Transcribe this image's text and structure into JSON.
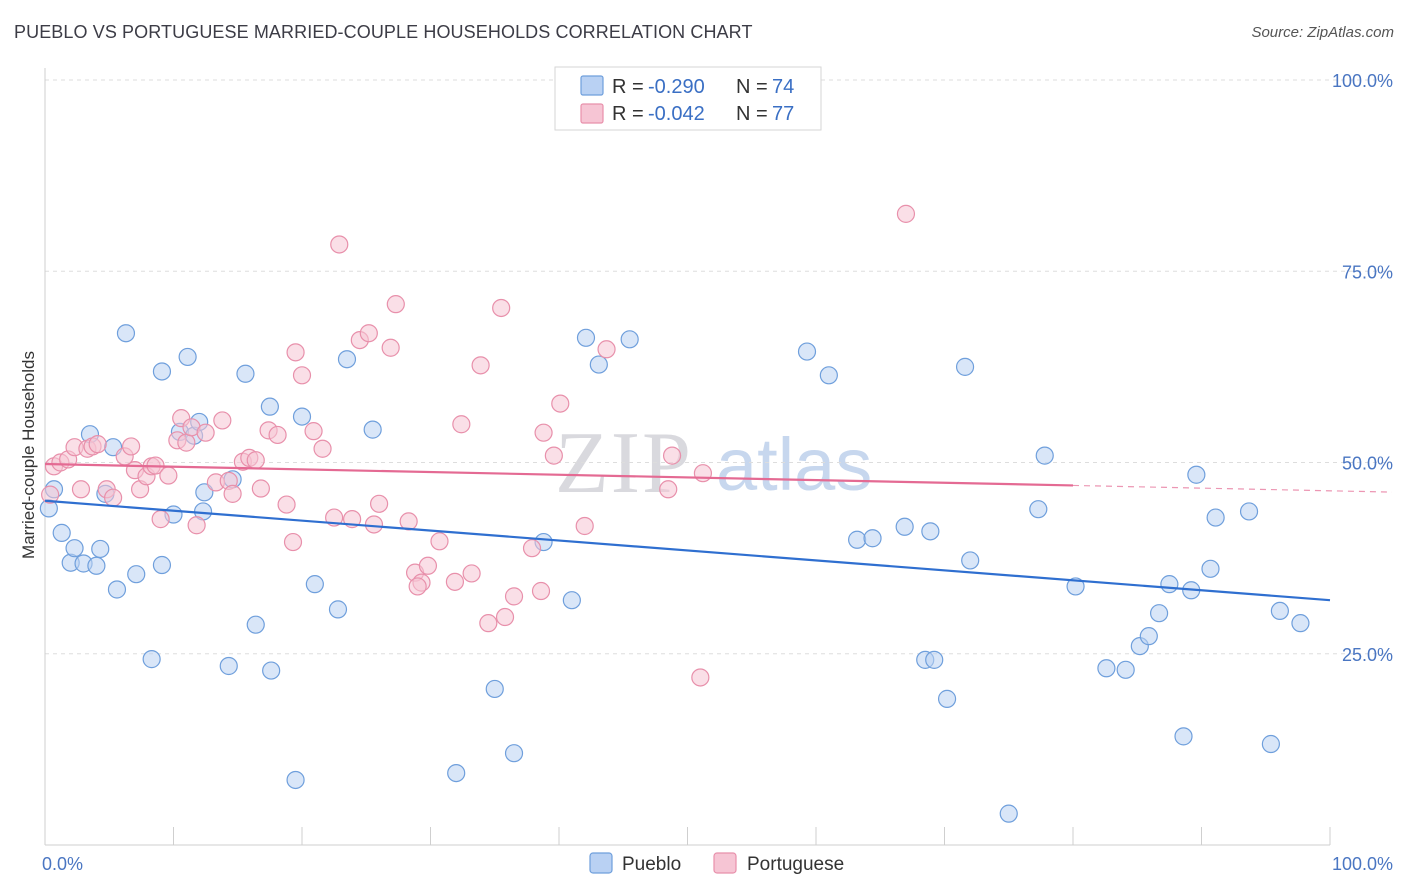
{
  "title": "PUEBLO VS PORTUGUESE MARRIED-COUPLE HOUSEHOLDS CORRELATION CHART",
  "source": "Source: ZipAtlas.com",
  "watermark": {
    "zip": "ZIP",
    "atlas": "atlas"
  },
  "colors": {
    "pueblo_fill": "#b9d1f3",
    "pueblo_stroke": "#6f9fdc",
    "pueblo_line": "#2f6fd0",
    "portuguese_fill": "#f6c5d4",
    "portuguese_stroke": "#e890ab",
    "portuguese_line": "#e46a93",
    "grid": "#dddddd",
    "tick_text": "#4a76c2"
  },
  "chart_data": {
    "type": "scatter",
    "title": "PUEBLO VS PORTUGUESE MARRIED-COUPLE HOUSEHOLDS CORRELATION CHART",
    "xlabel": "",
    "ylabel": "Married-couple Households",
    "xlim": [
      0,
      100
    ],
    "ylim": [
      0,
      100
    ],
    "x_tick_labels": [
      "0.0%",
      "100.0%"
    ],
    "y_ticks": [
      25,
      50,
      75,
      100
    ],
    "y_tick_labels": [
      "25.0%",
      "50.0%",
      "75.0%",
      "100.0%"
    ],
    "grid": true,
    "legend": {
      "placement": "top-center",
      "entries": [
        {
          "r_label": "R =",
          "r_value": "-0.290",
          "n_label": "N =",
          "n_value": "74"
        },
        {
          "r_label": "R =",
          "r_value": "-0.042",
          "n_label": "N =",
          "n_value": "77"
        }
      ]
    },
    "series": [
      {
        "name": "Pueblo",
        "trend": {
          "x": [
            0,
            100
          ],
          "y": [
            45.0,
            32.0
          ],
          "dashed_from": null
        },
        "points": [
          [
            0.3,
            44.0
          ],
          [
            0.7,
            46.5
          ],
          [
            1.3,
            40.8
          ],
          [
            2.0,
            36.9
          ],
          [
            2.3,
            38.8
          ],
          [
            3.0,
            36.8
          ],
          [
            3.5,
            53.7
          ],
          [
            4.0,
            36.5
          ],
          [
            4.3,
            38.7
          ],
          [
            4.7,
            45.9
          ],
          [
            5.3,
            52.0
          ],
          [
            5.6,
            33.4
          ],
          [
            6.3,
            66.9
          ],
          [
            7.1,
            35.4
          ],
          [
            8.3,
            24.3
          ],
          [
            9.1,
            36.6
          ],
          [
            9.1,
            61.9
          ],
          [
            10.0,
            43.2
          ],
          [
            10.5,
            54.0
          ],
          [
            11.1,
            63.8
          ],
          [
            11.6,
            53.5
          ],
          [
            12.0,
            55.3
          ],
          [
            12.3,
            43.6
          ],
          [
            12.4,
            46.1
          ],
          [
            14.3,
            23.4
          ],
          [
            14.6,
            47.8
          ],
          [
            15.6,
            61.6
          ],
          [
            16.4,
            28.8
          ],
          [
            17.5,
            57.3
          ],
          [
            17.6,
            22.8
          ],
          [
            19.5,
            8.5
          ],
          [
            20.0,
            56.0
          ],
          [
            21.0,
            34.1
          ],
          [
            22.8,
            30.8
          ],
          [
            23.5,
            63.5
          ],
          [
            25.5,
            54.3
          ],
          [
            32.0,
            9.4
          ],
          [
            35.0,
            20.4
          ],
          [
            36.5,
            12.0
          ],
          [
            38.8,
            39.6
          ],
          [
            41.0,
            32.0
          ],
          [
            42.1,
            66.3
          ],
          [
            43.1,
            62.8
          ],
          [
            45.5,
            66.1
          ],
          [
            59.3,
            64.5
          ],
          [
            61.0,
            61.4
          ],
          [
            63.2,
            39.9
          ],
          [
            64.4,
            40.1
          ],
          [
            66.9,
            41.6
          ],
          [
            68.5,
            24.2
          ],
          [
            68.9,
            41.0
          ],
          [
            69.2,
            24.2
          ],
          [
            70.2,
            19.1
          ],
          [
            71.6,
            62.5
          ],
          [
            72.0,
            37.2
          ],
          [
            75.0,
            4.1
          ],
          [
            77.3,
            43.9
          ],
          [
            77.8,
            50.9
          ],
          [
            80.2,
            33.8
          ],
          [
            82.6,
            23.1
          ],
          [
            84.1,
            22.9
          ],
          [
            85.2,
            26.0
          ],
          [
            85.9,
            27.3
          ],
          [
            86.7,
            30.3
          ],
          [
            87.5,
            34.1
          ],
          [
            88.6,
            14.2
          ],
          [
            89.2,
            33.3
          ],
          [
            89.6,
            48.4
          ],
          [
            90.7,
            36.1
          ],
          [
            91.1,
            42.8
          ],
          [
            93.7,
            43.6
          ],
          [
            95.4,
            13.2
          ],
          [
            96.1,
            30.6
          ],
          [
            97.7,
            29.0
          ]
        ]
      },
      {
        "name": "Portuguese",
        "trend": {
          "x": [
            0,
            100
          ],
          "y": [
            49.8,
            46.3
          ],
          "dashed_from": 80
        },
        "points": [
          [
            0.4,
            45.8
          ],
          [
            0.7,
            49.5
          ],
          [
            1.2,
            50.0
          ],
          [
            1.8,
            50.4
          ],
          [
            2.3,
            52.0
          ],
          [
            2.8,
            46.5
          ],
          [
            3.3,
            51.8
          ],
          [
            3.7,
            52.1
          ],
          [
            4.1,
            52.4
          ],
          [
            4.8,
            46.5
          ],
          [
            5.3,
            45.4
          ],
          [
            6.2,
            50.8
          ],
          [
            6.7,
            52.1
          ],
          [
            7.0,
            49.0
          ],
          [
            7.4,
            46.5
          ],
          [
            7.9,
            48.2
          ],
          [
            8.3,
            49.5
          ],
          [
            8.6,
            49.6
          ],
          [
            9.0,
            42.6
          ],
          [
            9.6,
            48.3
          ],
          [
            10.3,
            52.9
          ],
          [
            10.6,
            55.8
          ],
          [
            11.0,
            52.6
          ],
          [
            11.4,
            54.6
          ],
          [
            11.8,
            41.8
          ],
          [
            12.5,
            53.9
          ],
          [
            13.3,
            47.4
          ],
          [
            13.8,
            55.5
          ],
          [
            14.3,
            47.6
          ],
          [
            14.6,
            45.9
          ],
          [
            15.4,
            50.1
          ],
          [
            15.9,
            50.6
          ],
          [
            16.4,
            50.3
          ],
          [
            16.8,
            46.6
          ],
          [
            17.4,
            54.2
          ],
          [
            18.1,
            53.6
          ],
          [
            18.8,
            44.5
          ],
          [
            19.3,
            39.6
          ],
          [
            19.5,
            64.4
          ],
          [
            20.0,
            61.4
          ],
          [
            20.9,
            54.1
          ],
          [
            21.6,
            51.8
          ],
          [
            22.5,
            42.8
          ],
          [
            22.9,
            78.5
          ],
          [
            23.9,
            42.6
          ],
          [
            24.5,
            66.0
          ],
          [
            25.2,
            66.9
          ],
          [
            25.6,
            41.9
          ],
          [
            26.0,
            44.6
          ],
          [
            26.9,
            65.0
          ],
          [
            27.3,
            70.7
          ],
          [
            28.3,
            42.3
          ],
          [
            28.8,
            35.6
          ],
          [
            29.3,
            34.3
          ],
          [
            29.8,
            36.5
          ],
          [
            30.7,
            39.7
          ],
          [
            31.9,
            34.4
          ],
          [
            32.4,
            55.0
          ],
          [
            33.2,
            35.5
          ],
          [
            33.9,
            62.7
          ],
          [
            34.5,
            29.0
          ],
          [
            35.5,
            70.2
          ],
          [
            35.8,
            29.8
          ],
          [
            36.5,
            32.5
          ],
          [
            37.9,
            38.8
          ],
          [
            38.6,
            33.2
          ],
          [
            38.8,
            53.9
          ],
          [
            39.6,
            50.9
          ],
          [
            40.1,
            57.7
          ],
          [
            42.0,
            41.7
          ],
          [
            43.7,
            64.8
          ],
          [
            48.5,
            46.5
          ],
          [
            48.8,
            50.9
          ],
          [
            51.0,
            21.9
          ],
          [
            51.2,
            48.6
          ],
          [
            67.0,
            82.5
          ],
          [
            29.0,
            33.8
          ]
        ]
      }
    ]
  }
}
